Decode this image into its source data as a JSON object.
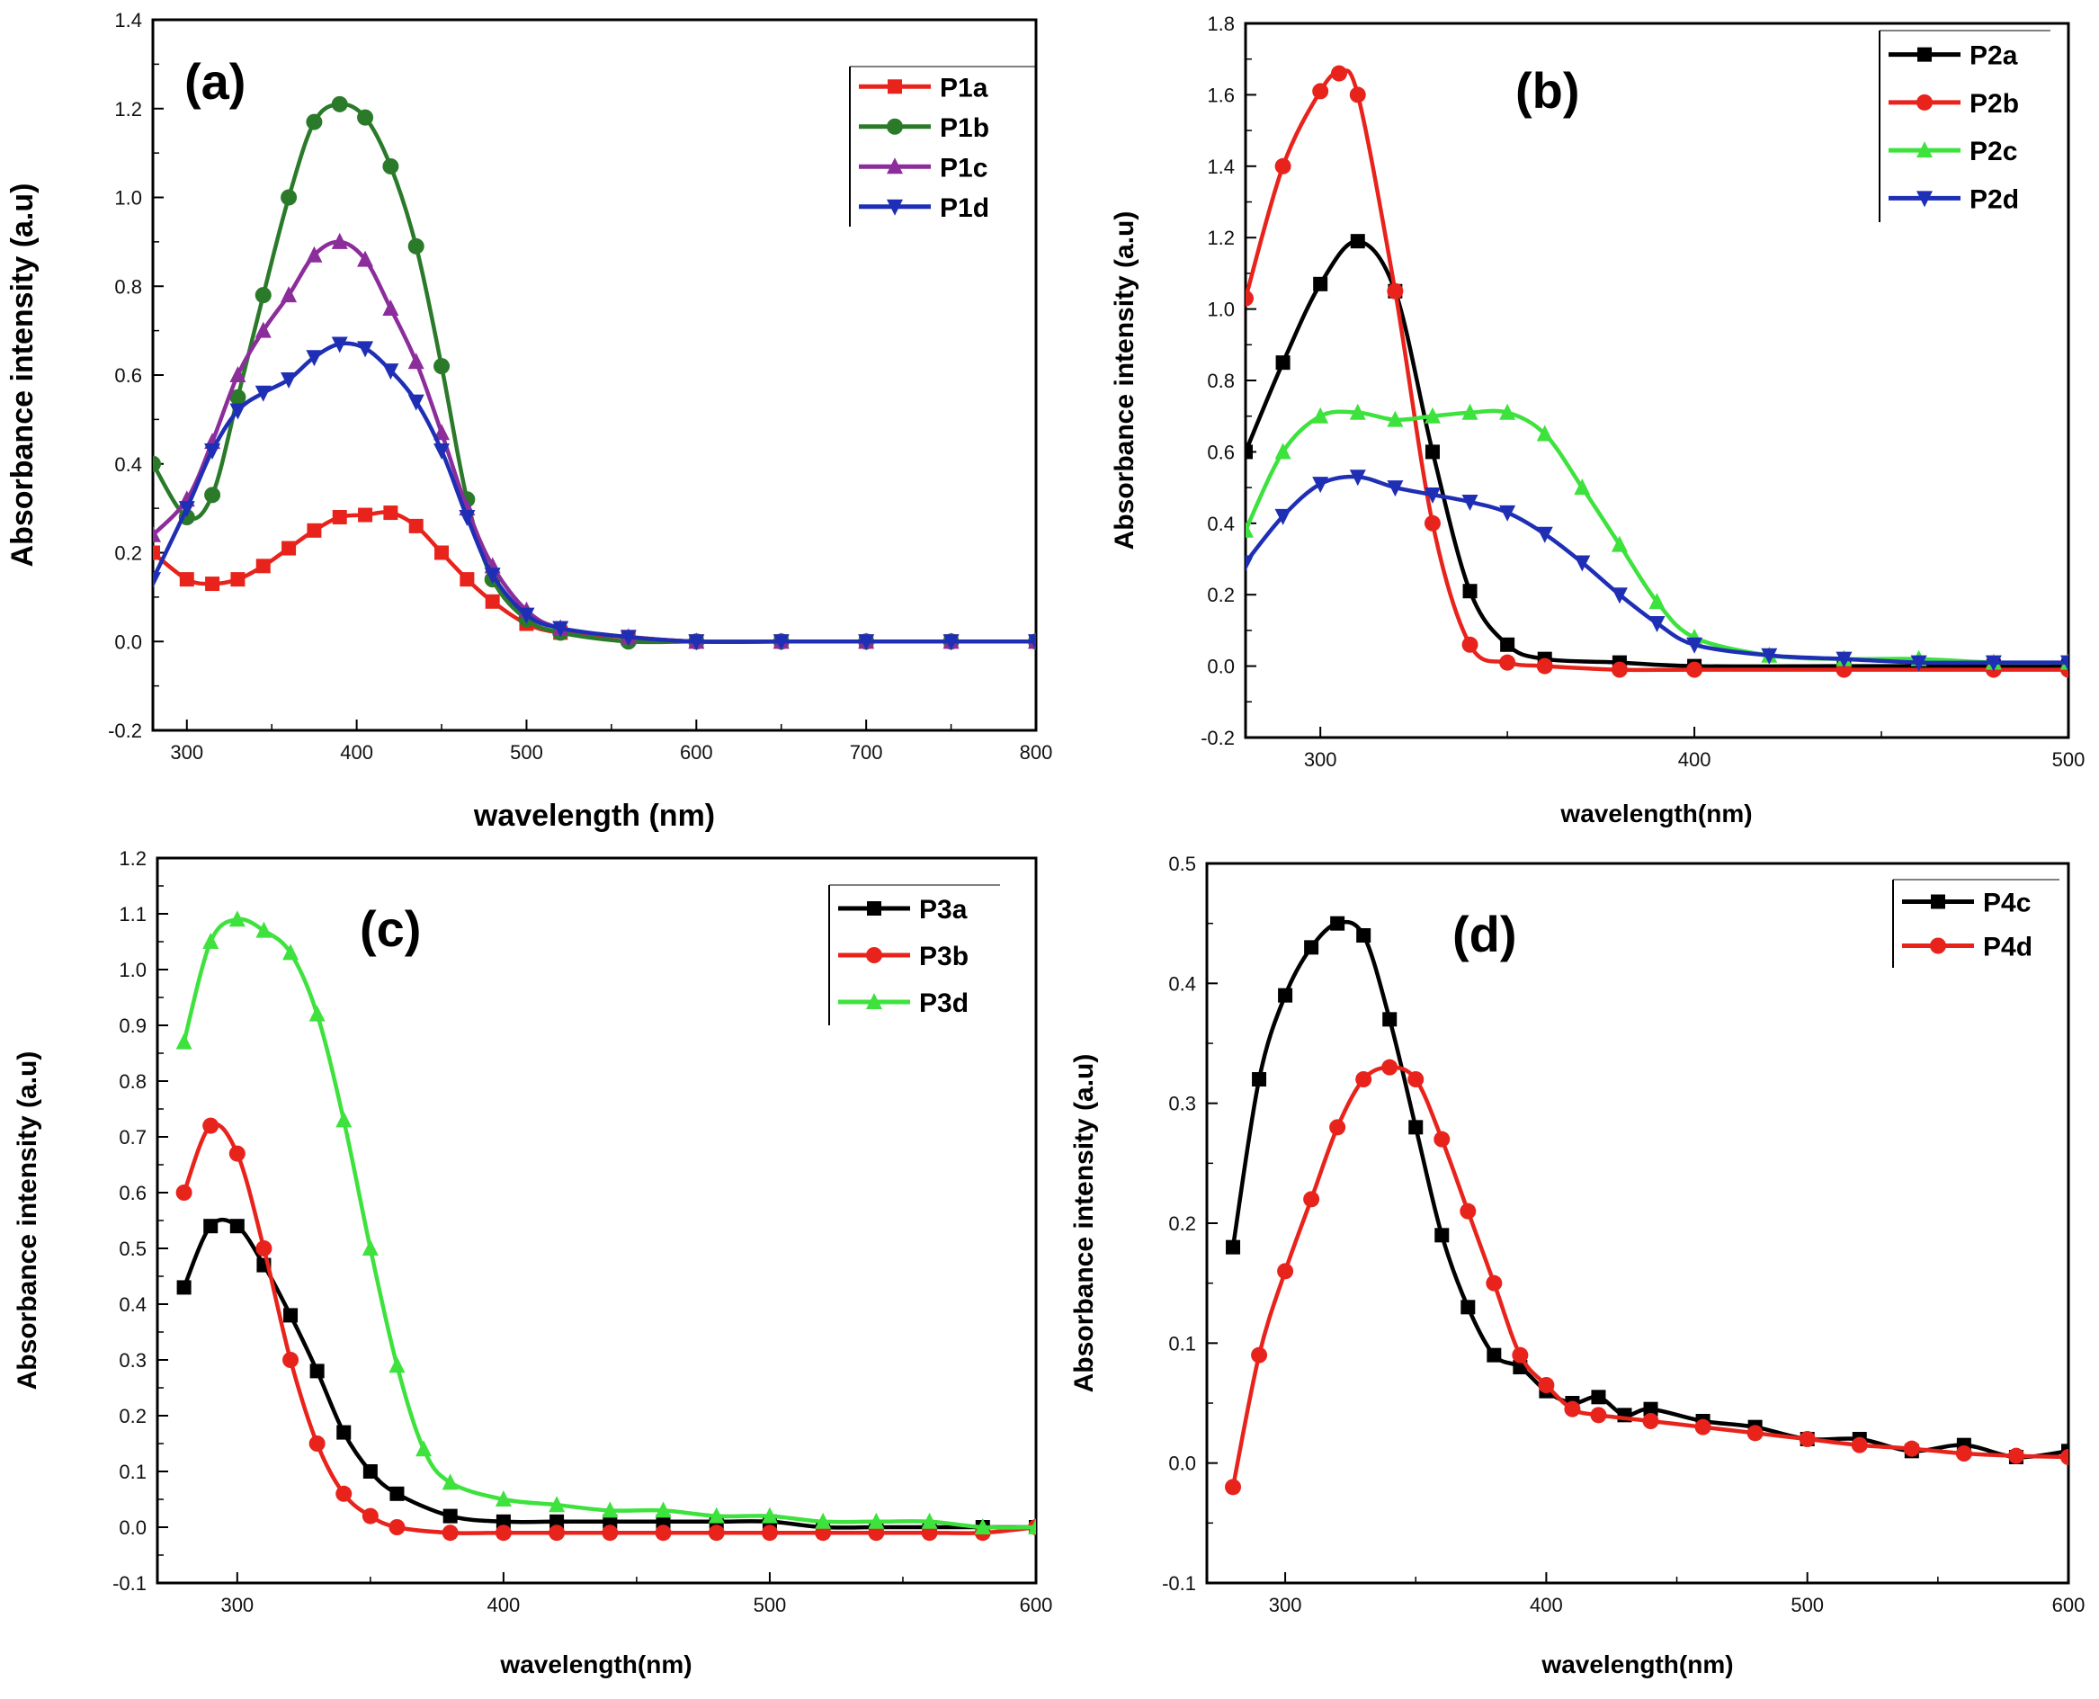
{
  "chart_data": [
    {
      "type": "line",
      "panel": "(a)",
      "xlabel": "wavelength (nm)",
      "ylabel": "Absorbance intensity (a.u)",
      "xlim": [
        280,
        800
      ],
      "ylim": [
        -0.2,
        1.4
      ],
      "xticks": [
        300,
        400,
        500,
        600,
        700,
        800
      ],
      "yticks": [
        -0.2,
        0.0,
        0.2,
        0.4,
        0.6,
        0.8,
        1.0,
        1.2,
        1.4
      ],
      "ytick_decimals": 1,
      "legend_position": "top-right",
      "series": [
        {
          "name": "P1a",
          "color": "#e8231c",
          "marker": "square",
          "x": [
            280,
            300,
            315,
            330,
            345,
            360,
            375,
            390,
            405,
            420,
            435,
            450,
            465,
            480,
            500,
            520,
            560,
            600,
            650,
            700,
            750,
            800
          ],
          "y": [
            0.2,
            0.14,
            0.13,
            0.14,
            0.17,
            0.21,
            0.25,
            0.28,
            0.285,
            0.29,
            0.26,
            0.2,
            0.14,
            0.09,
            0.04,
            0.02,
            0.01,
            0.0,
            0.0,
            0.0,
            0.0,
            0.0
          ]
        },
        {
          "name": "P1b",
          "color": "#2a7a2a",
          "marker": "circle",
          "x": [
            280,
            300,
            315,
            330,
            345,
            360,
            375,
            390,
            405,
            420,
            435,
            450,
            465,
            480,
            500,
            520,
            560,
            600,
            650,
            700,
            750,
            800
          ],
          "y": [
            0.4,
            0.28,
            0.33,
            0.55,
            0.78,
            1.0,
            1.17,
            1.21,
            1.18,
            1.07,
            0.89,
            0.62,
            0.32,
            0.14,
            0.05,
            0.02,
            0.0,
            0.0,
            0.0,
            0.0,
            0.0,
            0.0
          ]
        },
        {
          "name": "P1c",
          "color": "#8c2d9c",
          "marker": "triangle-up",
          "x": [
            280,
            300,
            315,
            330,
            345,
            360,
            375,
            390,
            405,
            420,
            435,
            450,
            465,
            480,
            500,
            520,
            560,
            600,
            650,
            700,
            750,
            800
          ],
          "y": [
            0.24,
            0.32,
            0.45,
            0.6,
            0.7,
            0.78,
            0.87,
            0.9,
            0.86,
            0.75,
            0.63,
            0.47,
            0.3,
            0.17,
            0.07,
            0.03,
            0.01,
            0.0,
            0.0,
            0.0,
            0.0,
            0.0
          ]
        },
        {
          "name": "P1d",
          "color": "#1f2fb5",
          "marker": "triangle-down",
          "x": [
            280,
            300,
            315,
            330,
            345,
            360,
            375,
            390,
            405,
            420,
            435,
            450,
            465,
            480,
            500,
            520,
            560,
            600,
            650,
            700,
            750,
            800
          ],
          "y": [
            0.14,
            0.3,
            0.43,
            0.52,
            0.56,
            0.59,
            0.64,
            0.67,
            0.66,
            0.61,
            0.54,
            0.43,
            0.28,
            0.15,
            0.06,
            0.03,
            0.01,
            0.0,
            0.0,
            0.0,
            0.0,
            0.0
          ]
        }
      ]
    },
    {
      "type": "line",
      "panel": "(b)",
      "xlabel": "wavelength(nm)",
      "ylabel": "Absorbance intensity (a.u)",
      "xlim": [
        280,
        500
      ],
      "ylim": [
        -0.2,
        1.8
      ],
      "xticks": [
        300,
        400,
        500
      ],
      "yticks": [
        -0.2,
        0.0,
        0.2,
        0.4,
        0.6,
        0.8,
        1.0,
        1.2,
        1.4,
        1.6,
        1.8
      ],
      "ytick_decimals": 1,
      "legend_position": "top-right",
      "series": [
        {
          "name": "P2a",
          "color": "#000000",
          "marker": "square",
          "x": [
            280,
            290,
            300,
            310,
            320,
            330,
            340,
            350,
            360,
            380,
            400,
            440,
            480,
            500
          ],
          "y": [
            0.6,
            0.85,
            1.07,
            1.19,
            1.05,
            0.6,
            0.21,
            0.06,
            0.02,
            0.01,
            0.0,
            0.0,
            0.0,
            0.0
          ]
        },
        {
          "name": "P2b",
          "color": "#e8231c",
          "marker": "circle",
          "x": [
            280,
            290,
            300,
            305,
            310,
            320,
            330,
            340,
            350,
            360,
            380,
            400,
            440,
            480,
            500
          ],
          "y": [
            1.03,
            1.4,
            1.61,
            1.66,
            1.6,
            1.05,
            0.4,
            0.06,
            0.01,
            0.0,
            -0.01,
            -0.01,
            -0.01,
            -0.01,
            -0.01
          ]
        },
        {
          "name": "P2c",
          "color": "#3de23d",
          "marker": "triangle-up",
          "x": [
            280,
            290,
            300,
            310,
            320,
            330,
            340,
            350,
            360,
            370,
            380,
            390,
            400,
            420,
            440,
            460,
            480,
            500
          ],
          "y": [
            0.38,
            0.6,
            0.7,
            0.71,
            0.69,
            0.7,
            0.71,
            0.71,
            0.65,
            0.5,
            0.34,
            0.18,
            0.08,
            0.03,
            0.02,
            0.02,
            0.01,
            0.01
          ]
        },
        {
          "name": "P2d",
          "color": "#1f2fb5",
          "marker": "triangle-down",
          "x": [
            280,
            290,
            300,
            310,
            320,
            330,
            340,
            350,
            360,
            370,
            380,
            390,
            400,
            420,
            440,
            460,
            480,
            500
          ],
          "y": [
            0.29,
            0.42,
            0.51,
            0.53,
            0.5,
            0.48,
            0.46,
            0.43,
            0.37,
            0.29,
            0.2,
            0.12,
            0.06,
            0.03,
            0.02,
            0.01,
            0.01,
            0.01
          ]
        }
      ]
    },
    {
      "type": "line",
      "panel": "(c)",
      "xlabel": "wavelength(nm)",
      "ylabel": "Absorbance intensity (a.u)",
      "xlim": [
        270,
        600
      ],
      "ylim": [
        -0.1,
        1.2
      ],
      "xticks": [
        300,
        400,
        500,
        600
      ],
      "yticks": [
        -0.1,
        0.0,
        0.1,
        0.2,
        0.3,
        0.4,
        0.5,
        0.6,
        0.7,
        0.8,
        0.9,
        1.0,
        1.1,
        1.2
      ],
      "ytick_decimals": 1,
      "legend_position": "top-right",
      "series": [
        {
          "name": "P3a",
          "color": "#000000",
          "marker": "square",
          "x": [
            280,
            290,
            300,
            310,
            320,
            330,
            340,
            350,
            360,
            380,
            400,
            420,
            440,
            460,
            480,
            500,
            520,
            540,
            560,
            580,
            600
          ],
          "y": [
            0.43,
            0.54,
            0.54,
            0.47,
            0.38,
            0.28,
            0.17,
            0.1,
            0.06,
            0.02,
            0.01,
            0.01,
            0.01,
            0.01,
            0.01,
            0.01,
            0.0,
            0.0,
            0.0,
            0.0,
            0.0
          ]
        },
        {
          "name": "P3b",
          "color": "#e8231c",
          "marker": "circle",
          "x": [
            280,
            290,
            300,
            310,
            320,
            330,
            340,
            350,
            360,
            380,
            400,
            420,
            440,
            460,
            480,
            500,
            520,
            540,
            560,
            580,
            600
          ],
          "y": [
            0.6,
            0.72,
            0.67,
            0.5,
            0.3,
            0.15,
            0.06,
            0.02,
            0.0,
            -0.01,
            -0.01,
            -0.01,
            -0.01,
            -0.01,
            -0.01,
            -0.01,
            -0.01,
            -0.01,
            -0.01,
            -0.01,
            0.0
          ]
        },
        {
          "name": "P3d",
          "color": "#3de23d",
          "marker": "triangle-up",
          "x": [
            280,
            290,
            300,
            310,
            320,
            330,
            340,
            350,
            360,
            370,
            380,
            400,
            420,
            440,
            460,
            480,
            500,
            520,
            540,
            560,
            580,
            600
          ],
          "y": [
            0.87,
            1.05,
            1.09,
            1.07,
            1.03,
            0.92,
            0.73,
            0.5,
            0.29,
            0.14,
            0.08,
            0.05,
            0.04,
            0.03,
            0.03,
            0.02,
            0.02,
            0.01,
            0.01,
            0.01,
            0.0,
            0.0
          ]
        }
      ]
    },
    {
      "type": "line",
      "panel": "(d)",
      "xlabel": "wavelength(nm)",
      "ylabel": "Absorbance intensity (a.u)",
      "xlim": [
        270,
        600
      ],
      "ylim": [
        -0.1,
        0.5
      ],
      "xticks": [
        300,
        400,
        500,
        600
      ],
      "yticks": [
        -0.1,
        0.0,
        0.1,
        0.2,
        0.3,
        0.4,
        0.5
      ],
      "ytick_decimals": 1,
      "legend_position": "top-right",
      "series": [
        {
          "name": "P4c",
          "color": "#000000",
          "marker": "square",
          "x": [
            280,
            290,
            300,
            310,
            320,
            330,
            340,
            350,
            360,
            370,
            380,
            390,
            400,
            410,
            420,
            430,
            440,
            460,
            480,
            500,
            520,
            540,
            560,
            580,
            600
          ],
          "y": [
            0.18,
            0.32,
            0.39,
            0.43,
            0.45,
            0.44,
            0.37,
            0.28,
            0.19,
            0.13,
            0.09,
            0.08,
            0.06,
            0.05,
            0.055,
            0.04,
            0.045,
            0.035,
            0.03,
            0.02,
            0.02,
            0.01,
            0.015,
            0.005,
            0.01
          ]
        },
        {
          "name": "P4d",
          "color": "#e8231c",
          "marker": "circle",
          "x": [
            280,
            290,
            300,
            310,
            320,
            330,
            340,
            350,
            360,
            370,
            380,
            390,
            400,
            410,
            420,
            440,
            460,
            480,
            500,
            520,
            540,
            560,
            580,
            600
          ],
          "y": [
            -0.02,
            0.09,
            0.16,
            0.22,
            0.28,
            0.32,
            0.33,
            0.32,
            0.27,
            0.21,
            0.15,
            0.09,
            0.065,
            0.045,
            0.04,
            0.035,
            0.03,
            0.025,
            0.02,
            0.015,
            0.012,
            0.008,
            0.006,
            0.005
          ]
        }
      ]
    }
  ]
}
